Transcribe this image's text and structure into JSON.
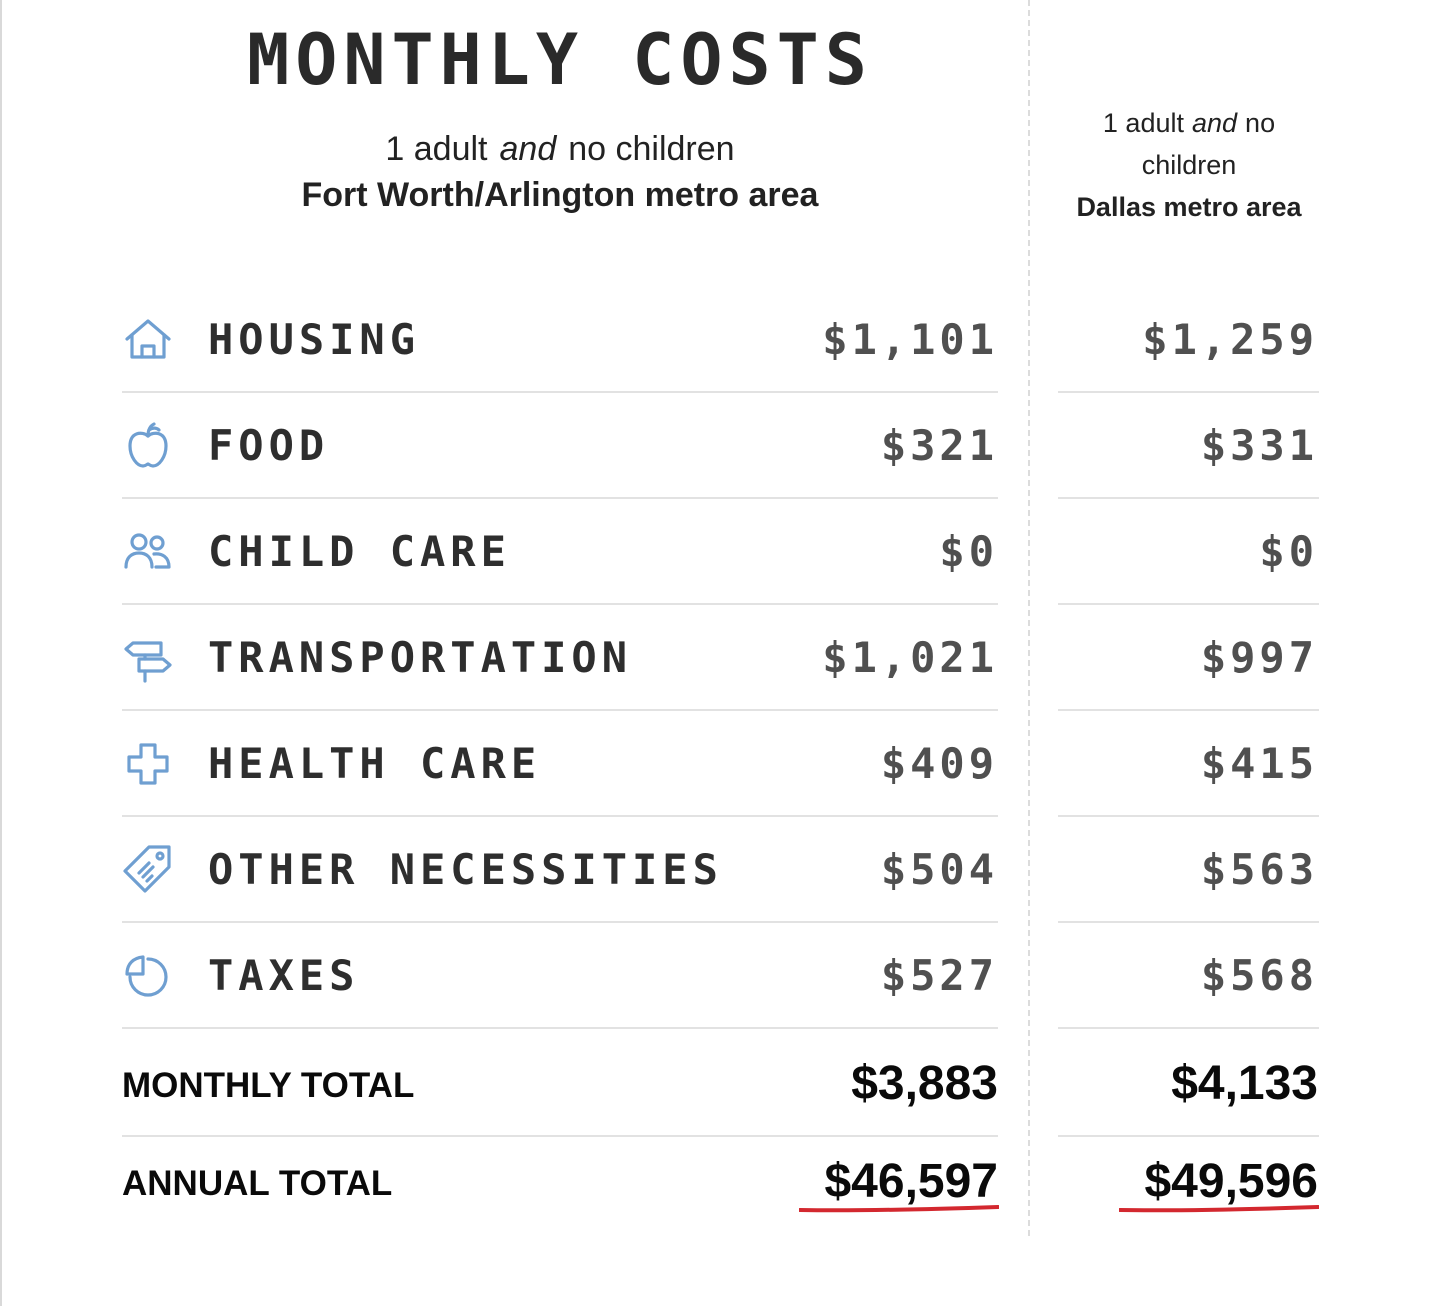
{
  "title": "MONTHLY COSTS",
  "columns": [
    {
      "household_adults": "1 adult",
      "household_and": "and",
      "household_children": "no children",
      "metro": "Fort Worth/Arlington metro area"
    },
    {
      "household_adults": "1 adult",
      "household_and": "and",
      "household_children": "no children",
      "metro": "Dallas metro area"
    }
  ],
  "rows": [
    {
      "icon": "house-icon",
      "label": "HOUSING",
      "left": "$1,101",
      "right": "$1,259"
    },
    {
      "icon": "apple-icon",
      "label": "FOOD",
      "left": "$321",
      "right": "$331"
    },
    {
      "icon": "people-icon",
      "label": "CHILD CARE",
      "left": "$0",
      "right": "$0"
    },
    {
      "icon": "signpost-icon",
      "label": "TRANSPORTATION",
      "left": "$1,021",
      "right": "$997"
    },
    {
      "icon": "medical-cross-icon",
      "label": "HEALTH CARE",
      "left": "$409",
      "right": "$415"
    },
    {
      "icon": "price-tag-icon",
      "label": "OTHER NECESSITIES",
      "left": "$504",
      "right": "$563"
    },
    {
      "icon": "pie-chart-icon",
      "label": "TAXES",
      "left": "$527",
      "right": "$568"
    }
  ],
  "totals": {
    "monthly_label": "MONTHLY TOTAL",
    "monthly_left": "$3,883",
    "monthly_right": "$4,133",
    "annual_label": "ANNUAL TOTAL",
    "annual_left": "$46,597",
    "annual_right": "$49,596"
  },
  "colors": {
    "icon": "#6f9fd1",
    "underline": "#d3282f",
    "divider": "#dcdcdc"
  }
}
